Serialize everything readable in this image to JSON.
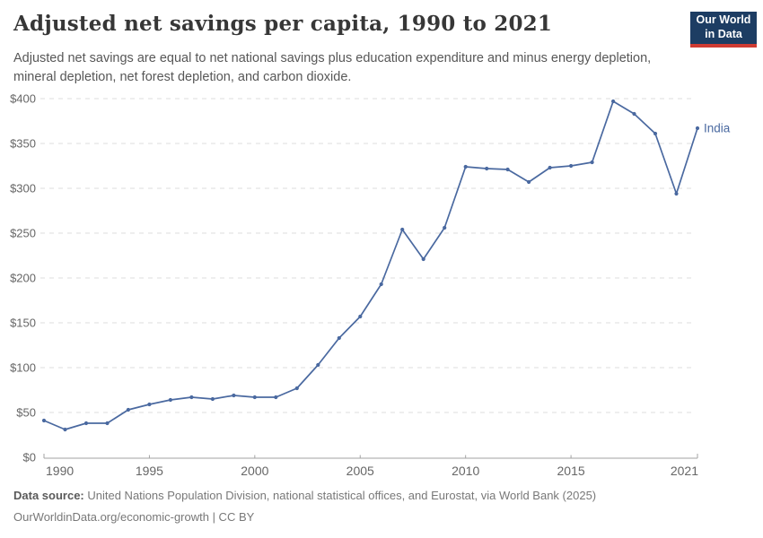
{
  "page": {
    "title": "Adjusted net savings per capita, 1990 to 2021",
    "subtitle": "Adjusted net savings are equal to net national savings plus education expenditure and minus energy depletion, mineral depletion, net forest depletion, and carbon dioxide."
  },
  "logo": {
    "line1": "Our World",
    "line2": "in Data",
    "bg_color": "#1d3d63",
    "bar_color": "#cf3b32"
  },
  "footer": {
    "source_label": "Data source:",
    "source_text": " United Nations Population Division, national statistical offices, and Eurostat, via World Bank (2025)",
    "license_line": "OurWorldinData.org/economic-growth | CC BY"
  },
  "chart_data": {
    "type": "line",
    "title": "Adjusted net savings per capita, 1990 to 2021",
    "x": [
      1990,
      1991,
      1992,
      1993,
      1994,
      1995,
      1996,
      1997,
      1998,
      1999,
      2000,
      2001,
      2002,
      2003,
      2004,
      2005,
      2006,
      2007,
      2008,
      2009,
      2010,
      2011,
      2012,
      2013,
      2014,
      2015,
      2016,
      2017,
      2018,
      2019,
      2020,
      2021
    ],
    "series": [
      {
        "name": "India",
        "color": "#4a69a0",
        "values": [
          41,
          31,
          38,
          38,
          53,
          59,
          64,
          67,
          65,
          69,
          67,
          67,
          77,
          103,
          133,
          157,
          193,
          254,
          221,
          256,
          324,
          322,
          321,
          307,
          323,
          325,
          329,
          397,
          383,
          361,
          294,
          367
        ]
      }
    ],
    "x_ticks": [
      "1990",
      "1995",
      "2000",
      "2005",
      "2010",
      "2015",
      "2021"
    ],
    "y_ticks": [
      {
        "value": 0,
        "label": "$0"
      },
      {
        "value": 50,
        "label": "$50"
      },
      {
        "value": 100,
        "label": "$100"
      },
      {
        "value": 150,
        "label": "$150"
      },
      {
        "value": 200,
        "label": "$200"
      },
      {
        "value": 250,
        "label": "$250"
      },
      {
        "value": 300,
        "label": "$300"
      },
      {
        "value": 350,
        "label": "$350"
      },
      {
        "value": 400,
        "label": "$400"
      }
    ],
    "xlim": [
      1990,
      2021
    ],
    "ylim": [
      0,
      400
    ],
    "grid": "horizontal-dashed",
    "legend": "line-end-label",
    "axis_color": "#a3a3a3",
    "grid_color": "#dcdcdc",
    "tick_text_color": "#666666"
  }
}
